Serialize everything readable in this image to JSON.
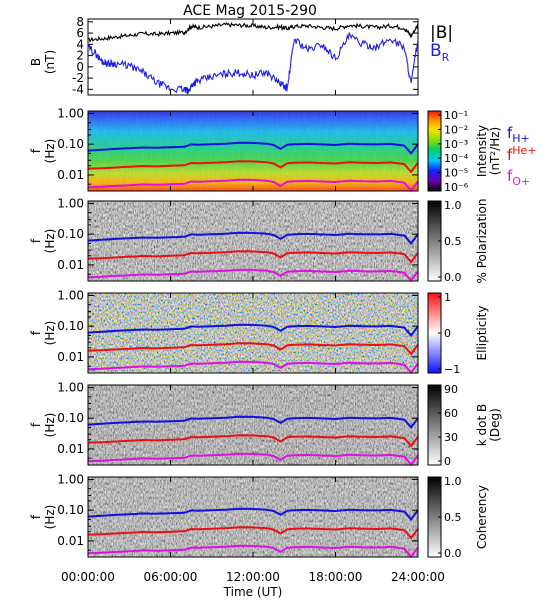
{
  "figure": {
    "title": "ACE Mag 2015-290",
    "x_axis_label": "Time (UT)",
    "x_ticks": [
      "00:00:00",
      "06:00:00",
      "12:00:00",
      "18:00:00",
      "24:00:00"
    ],
    "legend": {
      "b_total": "|B|",
      "b_r": "B",
      "b_r_sub": "R",
      "f_h": "f",
      "f_h_sub": "H+",
      "f_he": "f",
      "f_he_sub": "He+",
      "f_o": "f",
      "f_o_sub": "O+"
    },
    "colors": {
      "b_total": "#000000",
      "b_r": "#1f1fe6",
      "f_h": "#1010e0",
      "f_he": "#e81010",
      "f_o": "#e010e0"
    }
  },
  "chart_data": [
    {
      "type": "line",
      "panel": "magnetic-field",
      "ylabel": "B",
      "yunit": "(nT)",
      "ylim": [
        -5,
        8.5
      ],
      "yticks": [
        -4,
        -2,
        0,
        2,
        4,
        6,
        8
      ],
      "xlim_hours": [
        0,
        24
      ],
      "series": [
        {
          "name": "|B|",
          "x": [
            0,
            1,
            2,
            3,
            4,
            5,
            6,
            7,
            7.5,
            8,
            9,
            10,
            11,
            12,
            13,
            14,
            14.5,
            15,
            16,
            17,
            18,
            19,
            20,
            21,
            22,
            23,
            23.5,
            24
          ],
          "values": [
            4.8,
            5.0,
            5.3,
            5.6,
            5.9,
            5.8,
            6.0,
            6.1,
            7.2,
            7.0,
            7.2,
            7.5,
            7.4,
            7.3,
            7.0,
            7.1,
            6.8,
            7.2,
            7.3,
            7.0,
            6.8,
            7.4,
            7.2,
            7.0,
            7.3,
            6.9,
            5.5,
            7.5
          ]
        },
        {
          "name": "B_R",
          "x": [
            0,
            0.5,
            1,
            1.5,
            2,
            3,
            4,
            5,
            6,
            7,
            7.3,
            7.6,
            8,
            9,
            10,
            11,
            12,
            13,
            14,
            14.5,
            15,
            16,
            17,
            18,
            19,
            20,
            21,
            22,
            23,
            23.5,
            24
          ],
          "values": [
            3.5,
            2.5,
            1.0,
            0.6,
            0.6,
            0.2,
            -1.0,
            -2.8,
            -3.9,
            -4.0,
            -4.4,
            -3.0,
            -2.5,
            -1.8,
            -1.2,
            -1.0,
            -1.5,
            -1.0,
            -3.0,
            -3.8,
            5.0,
            3.0,
            4.0,
            1.5,
            5.5,
            4.0,
            3.5,
            5.0,
            3.5,
            -3.0,
            5.0
          ]
        }
      ]
    },
    {
      "type": "heatmap",
      "panel": "intensity",
      "ylabel": "f",
      "yunit": "(Hz)",
      "yticks": [
        "1.00",
        "0.10",
        "0.01"
      ],
      "yscale": "log",
      "ylim": [
        0.003,
        1.2
      ],
      "colorbar": {
        "label": "Intensity",
        "unit": "(nT²/Hz)",
        "ticks": [
          "10⁻¹",
          "10⁻²",
          "10⁻³",
          "10⁻⁴",
          "10⁻⁵",
          "10⁻⁶"
        ],
        "scale": "rainbow"
      }
    },
    {
      "type": "heatmap",
      "panel": "polarization",
      "ylabel": "f",
      "yunit": "(Hz)",
      "yticks": [
        "1.00",
        "0.10",
        "0.01"
      ],
      "yscale": "log",
      "colorbar": {
        "label": "% Polarization",
        "unit": "",
        "ticks": [
          "1.0",
          "0.5",
          "0.0"
        ],
        "scale": "gray"
      }
    },
    {
      "type": "heatmap",
      "panel": "ellipticity",
      "ylabel": "f",
      "yunit": "(Hz)",
      "yticks": [
        "1.00",
        "0.10",
        "0.01"
      ],
      "yscale": "log",
      "colorbar": {
        "label": "Ellipticity",
        "unit": "",
        "ticks": [
          "1",
          "0",
          "−1"
        ],
        "scale": "bluered"
      }
    },
    {
      "type": "heatmap",
      "panel": "k-dot-b",
      "ylabel": "f",
      "yunit": "(Hz)",
      "yticks": [
        "1.00",
        "0.10",
        "0.01"
      ],
      "yscale": "log",
      "colorbar": {
        "label": "k dot B",
        "unit": "(Deg)",
        "ticks": [
          "90",
          "60",
          "30",
          "0"
        ],
        "scale": "gray"
      }
    },
    {
      "type": "heatmap",
      "panel": "coherency",
      "ylabel": "f",
      "yunit": "(Hz)",
      "yticks": [
        "1.00",
        "0.10",
        "0.01"
      ],
      "yscale": "log",
      "colorbar": {
        "label": "Coherency",
        "unit": "",
        "ticks": [
          "1.0",
          "0.5",
          "0.0"
        ],
        "scale": "gray"
      }
    }
  ],
  "gyrofrequency_lines": {
    "x_hours": [
      0,
      1,
      2,
      3,
      4,
      5,
      6,
      7,
      7.5,
      8,
      9,
      10,
      11,
      12,
      13,
      13.5,
      14,
      14.5,
      15,
      16,
      17,
      18,
      19,
      20,
      21,
      22,
      23,
      23.5,
      24
    ],
    "f_H_hz": [
      0.062,
      0.066,
      0.07,
      0.074,
      0.078,
      0.076,
      0.08,
      0.082,
      0.098,
      0.096,
      0.1,
      0.104,
      0.112,
      0.11,
      0.104,
      0.094,
      0.07,
      0.096,
      0.1,
      0.102,
      0.098,
      0.094,
      0.104,
      0.1,
      0.098,
      0.102,
      0.09,
      0.05,
      0.1
    ],
    "f_He_hz": [
      0.016,
      0.0165,
      0.0175,
      0.0185,
      0.0195,
      0.019,
      0.02,
      0.0205,
      0.0245,
      0.024,
      0.025,
      0.026,
      0.028,
      0.0275,
      0.026,
      0.0235,
      0.0175,
      0.024,
      0.025,
      0.0255,
      0.0245,
      0.0235,
      0.026,
      0.025,
      0.0245,
      0.0255,
      0.0225,
      0.0125,
      0.025
    ],
    "f_O_hz": [
      0.004,
      0.0041,
      0.0044,
      0.0046,
      0.0049,
      0.0048,
      0.005,
      0.0051,
      0.0061,
      0.006,
      0.0062,
      0.0065,
      0.007,
      0.0069,
      0.0065,
      0.0059,
      0.0044,
      0.006,
      0.0062,
      0.0064,
      0.0061,
      0.0059,
      0.0065,
      0.0062,
      0.0061,
      0.0064,
      0.0056,
      0.0031,
      0.0062
    ]
  }
}
